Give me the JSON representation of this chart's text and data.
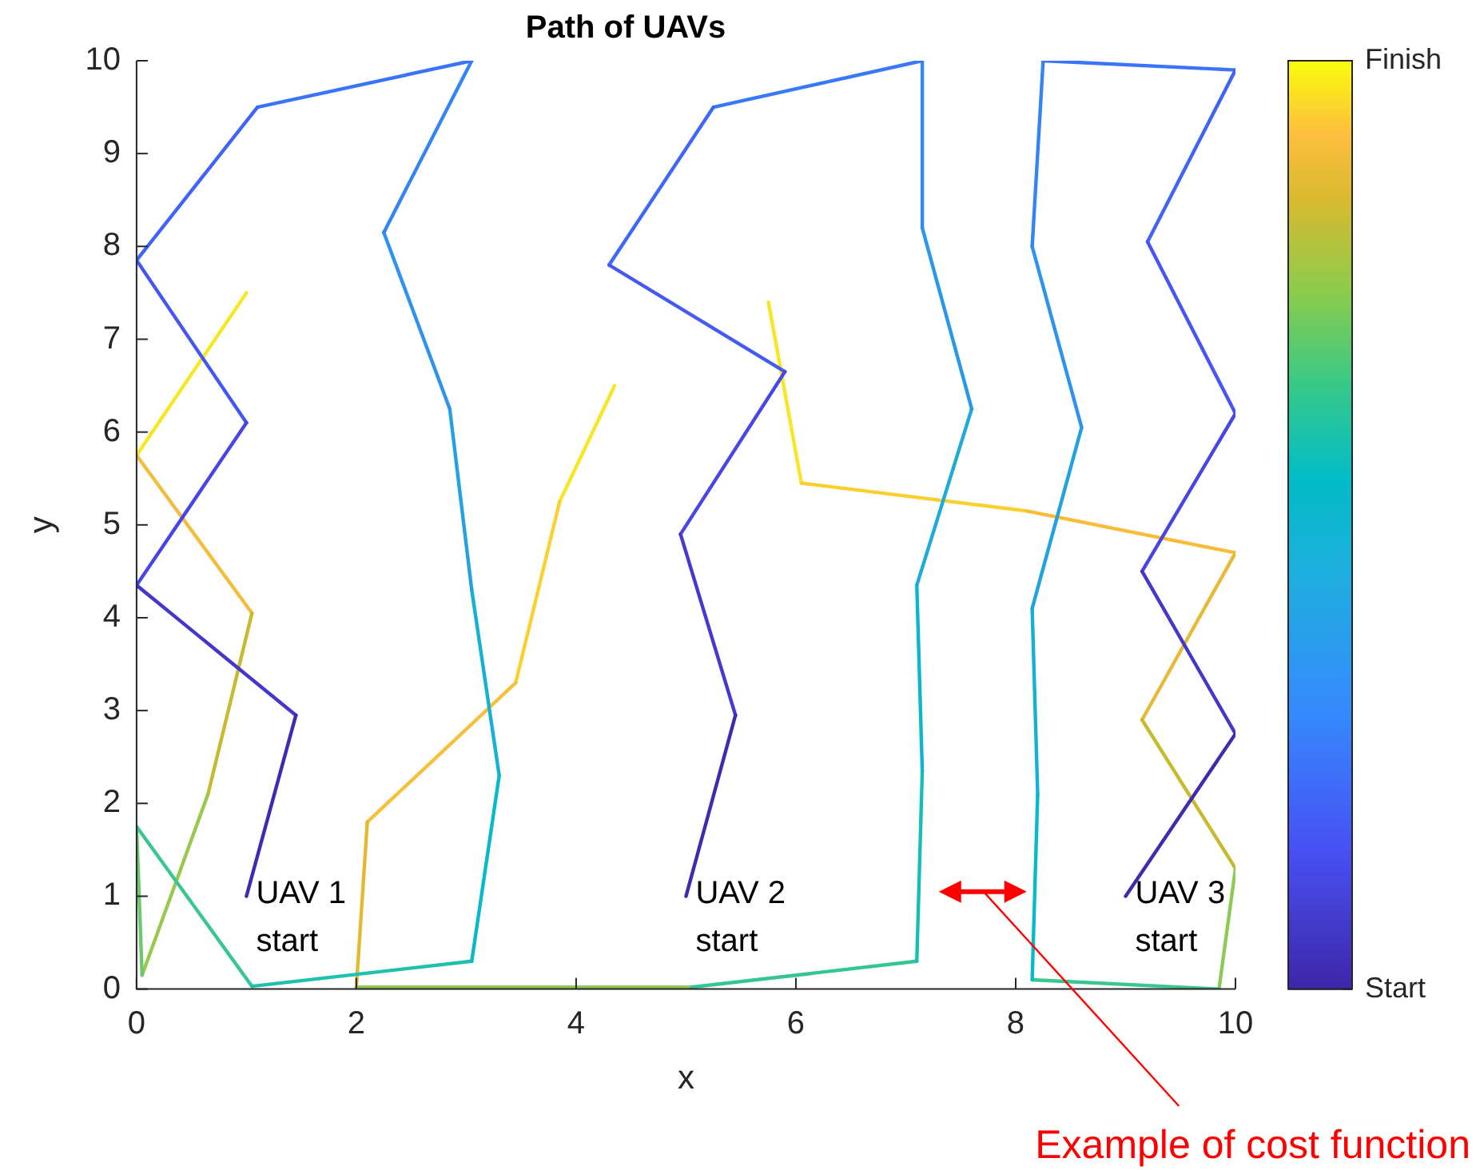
{
  "chart_data": {
    "type": "line",
    "title": "Path of UAVs",
    "xlabel": "x",
    "ylabel": "y",
    "xlim": [
      0,
      10
    ],
    "xticks": [
      0,
      2,
      4,
      6,
      8,
      10
    ],
    "ylim": [
      0,
      10
    ],
    "yticks": [
      0,
      1,
      2,
      3,
      4,
      5,
      6,
      7,
      8,
      9,
      10
    ],
    "grid": false,
    "legend": false,
    "marker": "none",
    "line_style": "solid",
    "clim": [
      0,
      1
    ],
    "cticks": [
      {
        "value": 0,
        "label": "Start"
      },
      {
        "value": 1,
        "label": "Finish"
      }
    ],
    "series": [
      {
        "x": [
          1,
          1.45
        ],
        "values": [
          1,
          2.95
        ],
        "color": "#3f2bb0"
      },
      {
        "x": [
          1.45,
          0
        ],
        "values": [
          2.95,
          4.35
        ],
        "color": "#4437cc"
      },
      {
        "x": [
          0,
          1
        ],
        "values": [
          4.35,
          6.1
        ],
        "color": "#4745e6"
      },
      {
        "x": [
          1,
          0
        ],
        "values": [
          6.1,
          7.85
        ],
        "color": "#4656f4"
      },
      {
        "x": [
          0,
          1.1
        ],
        "values": [
          7.85,
          9.5
        ],
        "color": "#4064fa"
      },
      {
        "x": [
          1.1,
          3.05
        ],
        "values": [
          9.5,
          10
        ],
        "color": "#3a74fb"
      },
      {
        "x": [
          3.05,
          2.25
        ],
        "values": [
          10,
          8.15
        ],
        "color": "#3384f5"
      },
      {
        "x": [
          2.25,
          2.85
        ],
        "values": [
          8.15,
          6.25
        ],
        "color": "#2d93ec"
      },
      {
        "x": [
          2.85,
          3.05
        ],
        "values": [
          6.25,
          4.3
        ],
        "color": "#23a2e2"
      },
      {
        "x": [
          3.05,
          3.3
        ],
        "values": [
          4.3,
          2.3
        ],
        "color": "#14b0d6"
      },
      {
        "x": [
          3.3,
          3.05
        ],
        "values": [
          2.3,
          0.3
        ],
        "color": "#06bac9"
      },
      {
        "x": [
          3.05,
          1.05
        ],
        "values": [
          0.3,
          0.03
        ],
        "color": "#1fc1ae"
      },
      {
        "x": [
          1.05,
          0
        ],
        "values": [
          0.03,
          1.75
        ],
        "color": "#39c690"
      },
      {
        "x": [
          0,
          0.05
        ],
        "values": [
          1.75,
          0.15
        ],
        "color": "#68ca6a"
      },
      {
        "x": [
          0.05,
          0.65
        ],
        "values": [
          0.15,
          2.1
        ],
        "color": "#98c84c"
      },
      {
        "x": [
          0.65,
          1.05
        ],
        "values": [
          2.1,
          4.05
        ],
        "color": "#c6bb2e"
      },
      {
        "x": [
          1.05,
          0
        ],
        "values": [
          4.05,
          5.75
        ],
        "color": "#f1bd3a"
      },
      {
        "x": [
          0,
          1
        ],
        "values": [
          5.75,
          7.5
        ],
        "color": "#f9e622"
      },
      {
        "x": [
          5,
          5.45
        ],
        "values": [
          1,
          2.95
        ],
        "color": "#3f2bb0"
      },
      {
        "x": [
          5.45,
          4.95
        ],
        "values": [
          2.95,
          4.9
        ],
        "color": "#4539ce"
      },
      {
        "x": [
          4.95,
          5.9
        ],
        "values": [
          4.9,
          6.65
        ],
        "color": "#4747e8"
      },
      {
        "x": [
          5.9,
          4.3
        ],
        "values": [
          6.65,
          7.8
        ],
        "color": "#4559f5"
      },
      {
        "x": [
          4.3,
          5.25
        ],
        "values": [
          7.8,
          9.5
        ],
        "color": "#3f68fa"
      },
      {
        "x": [
          5.25,
          7.15
        ],
        "values": [
          9.5,
          10
        ],
        "color": "#3878fa"
      },
      {
        "x": [
          7.15,
          7.15
        ],
        "values": [
          10,
          8.2
        ],
        "color": "#3189f2"
      },
      {
        "x": [
          7.15,
          7.6
        ],
        "values": [
          8.2,
          6.25
        ],
        "color": "#2899e8"
      },
      {
        "x": [
          7.6,
          7.1
        ],
        "values": [
          6.25,
          4.35
        ],
        "color": "#1dabdc"
      },
      {
        "x": [
          7.1,
          7.15
        ],
        "values": [
          4.35,
          2.35
        ],
        "color": "#0bb6ce"
      },
      {
        "x": [
          7.15,
          7.1
        ],
        "values": [
          2.35,
          0.3
        ],
        "color": "#14bfb8"
      },
      {
        "x": [
          7.1,
          5.05
        ],
        "values": [
          0.3,
          0.02
        ],
        "color": "#34c596"
      },
      {
        "x": [
          5.05,
          2
        ],
        "values": [
          0.02,
          0.02
        ],
        "color": "#90c950"
      },
      {
        "x": [
          2,
          2.1
        ],
        "values": [
          0.02,
          1.8
        ],
        "color": "#e3b932"
      },
      {
        "x": [
          2.1,
          3.45
        ],
        "values": [
          1.8,
          3.3
        ],
        "color": "#f7c03a"
      },
      {
        "x": [
          3.45,
          3.85
        ],
        "values": [
          3.3,
          5.25
        ],
        "color": "#f9d12e"
      },
      {
        "x": [
          3.85,
          4.35
        ],
        "values": [
          5.25,
          6.5
        ],
        "color": "#f9e622"
      },
      {
        "x": [
          9,
          10
        ],
        "values": [
          1,
          2.75
        ],
        "color": "#3f2bb0"
      },
      {
        "x": [
          10,
          9.15
        ],
        "values": [
          2.75,
          4.5
        ],
        "color": "#4437cc"
      },
      {
        "x": [
          9.15,
          10
        ],
        "values": [
          4.5,
          6.2
        ],
        "color": "#4745e6"
      },
      {
        "x": [
          10,
          9.2
        ],
        "values": [
          6.2,
          8.05
        ],
        "color": "#4656f4"
      },
      {
        "x": [
          9.2,
          10
        ],
        "values": [
          8.05,
          9.9
        ],
        "color": "#4064fa"
      },
      {
        "x": [
          10,
          8.25
        ],
        "values": [
          9.9,
          10
        ],
        "color": "#3a74fb"
      },
      {
        "x": [
          8.25,
          8.15
        ],
        "values": [
          10,
          8
        ],
        "color": "#3384f5"
      },
      {
        "x": [
          8.15,
          8.6
        ],
        "values": [
          8,
          6.05
        ],
        "color": "#2d93ec"
      },
      {
        "x": [
          8.6,
          8.15
        ],
        "values": [
          6.05,
          4.1
        ],
        "color": "#23a2e2"
      },
      {
        "x": [
          8.15,
          8.2
        ],
        "values": [
          4.1,
          2.1
        ],
        "color": "#14b0d6"
      },
      {
        "x": [
          8.2,
          8.15
        ],
        "values": [
          2.1,
          0.1
        ],
        "color": "#06bac9"
      },
      {
        "x": [
          8.15,
          9.85
        ],
        "values": [
          0.1,
          0
        ],
        "color": "#39c690"
      },
      {
        "x": [
          9.85,
          10
        ],
        "values": [
          0,
          1.3
        ],
        "color": "#8dca54"
      },
      {
        "x": [
          10,
          9.15
        ],
        "values": [
          1.3,
          2.9
        ],
        "color": "#c6bb2e"
      },
      {
        "x": [
          9.15,
          10
        ],
        "values": [
          2.9,
          4.7
        ],
        "color": "#e8b934"
      },
      {
        "x": [
          10,
          8.1
        ],
        "values": [
          4.7,
          5.15
        ],
        "color": "#f7bd3a"
      },
      {
        "x": [
          8.1,
          6.05
        ],
        "values": [
          5.15,
          5.45
        ],
        "color": "#f9d02e"
      },
      {
        "x": [
          6.05,
          5.75
        ],
        "values": [
          5.45,
          7.4
        ],
        "color": "#f9e622"
      }
    ],
    "annotations": [
      {
        "text": "UAV 1\nstart",
        "x": 1,
        "y": 1
      },
      {
        "text": "UAV 2\nstart",
        "x": 5,
        "y": 1
      },
      {
        "text": "UAV 3\nstart",
        "x": 9,
        "y": 1
      },
      "Example of cost function"
    ]
  }
}
